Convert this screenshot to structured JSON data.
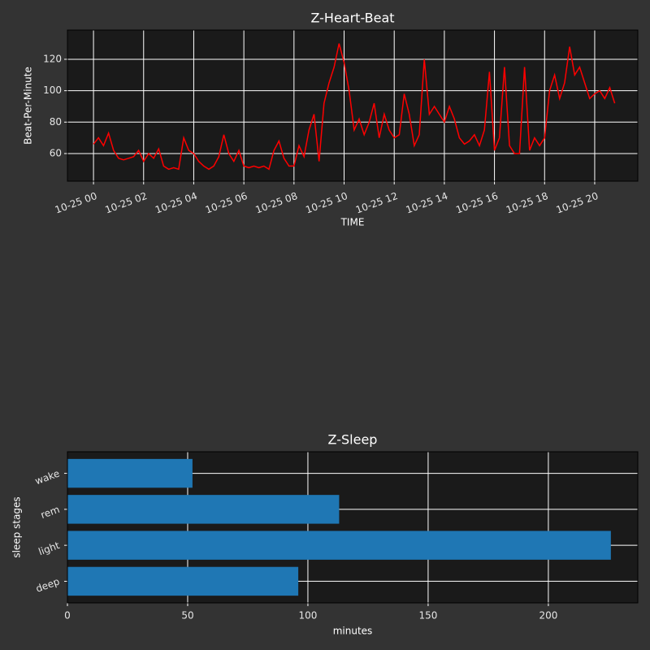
{
  "chart_data": [
    {
      "type": "line",
      "title": "Z-Heart-Beat",
      "xlabel": "TIME",
      "ylabel": "Beat-Per-Minute",
      "color": "#ff0000",
      "grid": true,
      "x": [
        0,
        0.2,
        0.4,
        0.6,
        0.8,
        1,
        1.2,
        1.4,
        1.6,
        1.8,
        2,
        2.2,
        2.4,
        2.6,
        2.8,
        3,
        3.2,
        3.4,
        3.6,
        3.8,
        4,
        4.2,
        4.4,
        4.6,
        4.8,
        5,
        5.2,
        5.4,
        5.6,
        5.8,
        6,
        6.2,
        6.4,
        6.6,
        6.8,
        7,
        7.2,
        7.4,
        7.6,
        7.8,
        8,
        8.2,
        8.4,
        8.6,
        8.8,
        9,
        9.2,
        9.4,
        9.6,
        9.8,
        10,
        10.2,
        10.4,
        10.6,
        10.8,
        11,
        11.2,
        11.4,
        11.6,
        11.8,
        12,
        12.2,
        12.4,
        12.6,
        12.8,
        13,
        13.2,
        13.4,
        13.6,
        13.8,
        14,
        14.2,
        14.4,
        14.6,
        14.8,
        15,
        15.2,
        15.4,
        15.6,
        15.8,
        16,
        16.2,
        16.4,
        16.6,
        16.8,
        17,
        17.2,
        17.4,
        17.6,
        17.8,
        18,
        18.2,
        18.4,
        18.6,
        18.8,
        19,
        19.2,
        19.4,
        19.6,
        19.8,
        20,
        20.2,
        20.4,
        20.6,
        20.8
      ],
      "values": [
        66,
        70,
        65,
        73,
        62,
        57,
        56,
        57,
        58,
        62,
        55,
        60,
        57,
        63,
        52,
        50,
        51,
        50,
        70,
        62,
        60,
        55,
        52,
        50,
        52,
        58,
        72,
        60,
        55,
        62,
        52,
        51,
        52,
        51,
        52,
        50,
        62,
        68,
        57,
        52,
        52,
        65,
        58,
        75,
        85,
        55,
        92,
        105,
        115,
        130,
        118,
        100,
        75,
        82,
        72,
        80,
        92,
        70,
        85,
        75,
        70,
        72,
        98,
        85,
        65,
        72,
        120,
        85,
        90,
        85,
        80,
        90,
        82,
        70,
        66,
        68,
        72,
        65,
        75,
        112,
        62,
        70,
        115,
        65,
        60,
        60,
        115,
        62,
        70,
        65,
        70,
        100,
        110,
        95,
        105,
        128,
        110,
        115,
        105,
        95,
        98,
        100,
        95,
        102,
        92
      ],
      "xlim": [
        -1.04,
        21.72
      ],
      "ylim": [
        42.4,
        138.6
      ],
      "xticks": [
        {
          "value": 0,
          "label": "10-25 00"
        },
        {
          "value": 2,
          "label": "10-25 02"
        },
        {
          "value": 4,
          "label": "10-25 04"
        },
        {
          "value": 6,
          "label": "10-25 06"
        },
        {
          "value": 8,
          "label": "10-25 08"
        },
        {
          "value": 10,
          "label": "10-25 10"
        },
        {
          "value": 12,
          "label": "10-25 12"
        },
        {
          "value": 14,
          "label": "10-25 14"
        },
        {
          "value": 16,
          "label": "10-25 16"
        },
        {
          "value": 18,
          "label": "10-25 18"
        },
        {
          "value": 20,
          "label": "10-25 20"
        }
      ],
      "yticks": [
        60,
        80,
        100,
        120
      ]
    },
    {
      "type": "barh",
      "title": "Z-Sleep",
      "xlabel": "minutes",
      "ylabel": "sleep stages",
      "color": "#1f77b4",
      "grid": true,
      "categories": [
        "deep",
        "light",
        "rem",
        "wake"
      ],
      "values": [
        96,
        226,
        113,
        52
      ],
      "xlim": [
        0,
        237.2
      ],
      "xticks": [
        0,
        50,
        100,
        150,
        200
      ]
    }
  ]
}
